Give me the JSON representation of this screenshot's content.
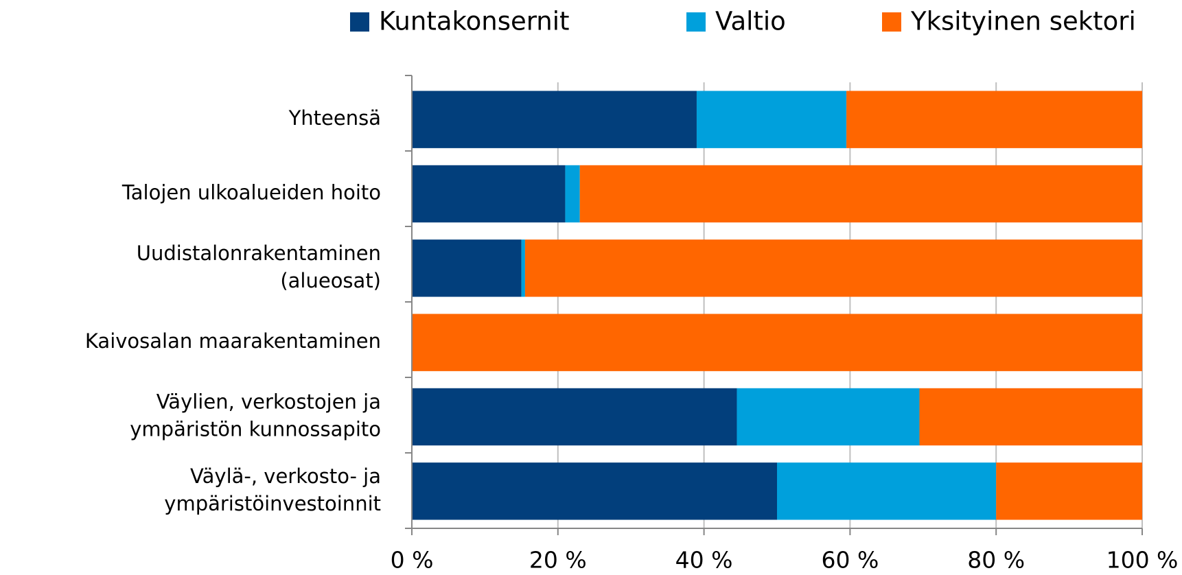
{
  "chart_data": {
    "type": "stacked-bar-horizontal",
    "categories": [
      [
        "Yhteensä"
      ],
      [
        "Talojen ulkoalueiden hoito"
      ],
      [
        "Uudistalonrakentaminen",
        "(alueosat)"
      ],
      [
        "Kaivosalan maarakentaminen"
      ],
      [
        "Väylien, verkostojen ja",
        "ympäristön kunnossapito"
      ],
      [
        "Väylä-, verkosto- ja",
        "ympäristöinvestoinnit"
      ]
    ],
    "series": [
      {
        "name": "Kuntakonsernit",
        "color": "#023f7c",
        "values": [
          39,
          21,
          15,
          0,
          44.5,
          50
        ]
      },
      {
        "name": "Valtio",
        "color": "#00a0dc",
        "values": [
          20.5,
          2,
          0.5,
          0,
          25,
          30
        ]
      },
      {
        "name": "Yksityinen sektori",
        "color": "#ff6600",
        "values": [
          40.5,
          77,
          84.5,
          100,
          30.5,
          20
        ]
      }
    ],
    "xlim": [
      0,
      100
    ],
    "xticks": [
      {
        "value": 0,
        "label": "0 %"
      },
      {
        "value": 20,
        "label": "20 %"
      },
      {
        "value": 40,
        "label": "40 %"
      },
      {
        "value": 60,
        "label": "60 %"
      },
      {
        "value": 80,
        "label": "80 %"
      },
      {
        "value": 100,
        "label": "100 %"
      }
    ],
    "grid": true,
    "legend": "top"
  }
}
